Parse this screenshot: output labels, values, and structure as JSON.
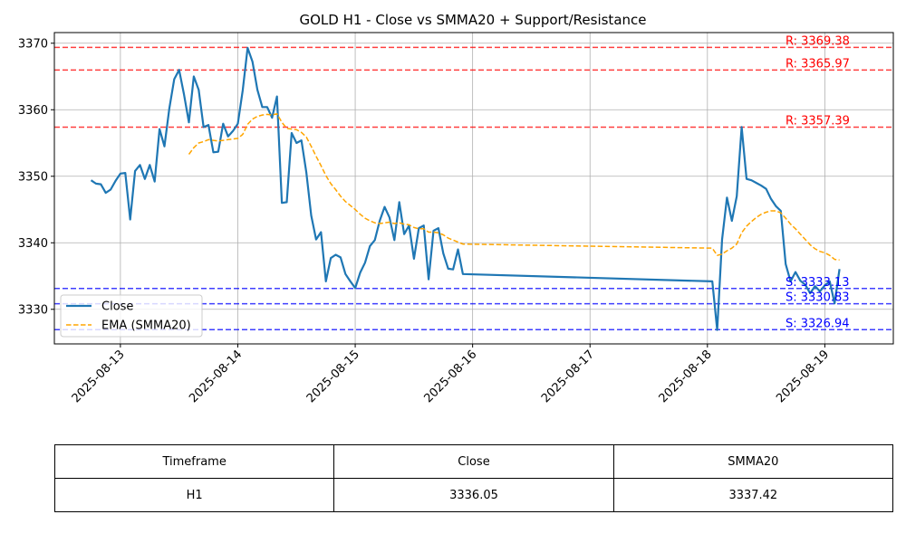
{
  "chart_data": {
    "type": "line",
    "title": "GOLD H1 - Close vs SMMA20 + Support/Resistance",
    "xlabel": "",
    "ylabel": "",
    "ylim": [
      3324.8,
      3371.6
    ],
    "xlim": [
      "2025-08-12 10:30",
      "2025-08-19 14:00"
    ],
    "grid": true,
    "legend_placement": "lower-left",
    "x_ticks": [
      "2025-08-13",
      "2025-08-14",
      "2025-08-15",
      "2025-08-16",
      "2025-08-17",
      "2025-08-18",
      "2025-08-19"
    ],
    "y_ticks": [
      3330,
      3340,
      3350,
      3360,
      3370
    ],
    "series": [
      {
        "name": "Close",
        "color": "#1f77b4",
        "style": "solid",
        "points": [
          [
            "2025-08-12 18:00",
            3349.4
          ],
          [
            "2025-08-12 19:00",
            3348.9
          ],
          [
            "2025-08-12 20:00",
            3348.8
          ],
          [
            "2025-08-12 21:00",
            3347.5
          ],
          [
            "2025-08-12 22:00",
            3348.0
          ],
          [
            "2025-08-12 23:00",
            3349.3
          ],
          [
            "2025-08-13 00:00",
            3350.4
          ],
          [
            "2025-08-13 01:00",
            3350.5
          ],
          [
            "2025-08-13 02:00",
            3343.5
          ],
          [
            "2025-08-13 03:00",
            3350.8
          ],
          [
            "2025-08-13 04:00",
            3351.7
          ],
          [
            "2025-08-13 05:00",
            3349.6
          ],
          [
            "2025-08-13 06:00",
            3351.7
          ],
          [
            "2025-08-13 07:00",
            3349.2
          ],
          [
            "2025-08-13 08:00",
            3357.1
          ],
          [
            "2025-08-13 09:00",
            3354.5
          ],
          [
            "2025-08-13 10:00",
            3360.2
          ],
          [
            "2025-08-13 11:00",
            3364.6
          ],
          [
            "2025-08-13 12:00",
            3366.0
          ],
          [
            "2025-08-13 13:00",
            3362.3
          ],
          [
            "2025-08-13 14:00",
            3358.1
          ],
          [
            "2025-08-13 15:00",
            3365.0
          ],
          [
            "2025-08-13 16:00",
            3363.0
          ],
          [
            "2025-08-13 17:00",
            3357.4
          ],
          [
            "2025-08-13 18:00",
            3357.7
          ],
          [
            "2025-08-13 19:00",
            3353.6
          ],
          [
            "2025-08-13 20:00",
            3353.7
          ],
          [
            "2025-08-13 21:00",
            3357.9
          ],
          [
            "2025-08-13 22:00",
            3356.0
          ],
          [
            "2025-08-13 23:00",
            3356.8
          ],
          [
            "2025-08-14 00:00",
            3357.9
          ],
          [
            "2025-08-14 01:00",
            3362.9
          ],
          [
            "2025-08-14 02:00",
            3369.3
          ],
          [
            "2025-08-14 03:00",
            3367.2
          ],
          [
            "2025-08-14 04:00",
            3363.0
          ],
          [
            "2025-08-14 05:00",
            3360.4
          ],
          [
            "2025-08-14 06:00",
            3360.4
          ],
          [
            "2025-08-14 07:00",
            3358.8
          ],
          [
            "2025-08-14 08:00",
            3362.0
          ],
          [
            "2025-08-14 09:00",
            3346.0
          ],
          [
            "2025-08-14 10:00",
            3346.1
          ],
          [
            "2025-08-14 11:00",
            3356.5
          ],
          [
            "2025-08-14 12:00",
            3355.0
          ],
          [
            "2025-08-14 13:00",
            3355.4
          ],
          [
            "2025-08-14 14:00",
            3350.6
          ],
          [
            "2025-08-14 15:00",
            3344.1
          ],
          [
            "2025-08-14 16:00",
            3340.5
          ],
          [
            "2025-08-14 17:00",
            3341.6
          ],
          [
            "2025-08-14 18:00",
            3334.2
          ],
          [
            "2025-08-14 19:00",
            3337.7
          ],
          [
            "2025-08-14 20:00",
            3338.2
          ],
          [
            "2025-08-14 21:00",
            3337.8
          ],
          [
            "2025-08-14 22:00",
            3335.3
          ],
          [
            "2025-08-14 23:00",
            3334.2
          ],
          [
            "2025-08-15 00:00",
            3333.2
          ],
          [
            "2025-08-15 01:00",
            3335.5
          ],
          [
            "2025-08-15 02:00",
            3337.0
          ],
          [
            "2025-08-15 03:00",
            3339.5
          ],
          [
            "2025-08-15 04:00",
            3340.4
          ],
          [
            "2025-08-15 05:00",
            3343.3
          ],
          [
            "2025-08-15 06:00",
            3345.4
          ],
          [
            "2025-08-15 07:00",
            3343.8
          ],
          [
            "2025-08-15 08:00",
            3340.4
          ],
          [
            "2025-08-15 09:00",
            3346.1
          ],
          [
            "2025-08-15 10:00",
            3341.3
          ],
          [
            "2025-08-15 11:00",
            3342.6
          ],
          [
            "2025-08-15 12:00",
            3337.6
          ],
          [
            "2025-08-15 13:00",
            3342.2
          ],
          [
            "2025-08-15 14:00",
            3342.6
          ],
          [
            "2025-08-15 15:00",
            3334.5
          ],
          [
            "2025-08-15 16:00",
            3341.8
          ],
          [
            "2025-08-15 17:00",
            3342.2
          ],
          [
            "2025-08-15 18:00",
            3338.4
          ],
          [
            "2025-08-15 19:00",
            3336.1
          ],
          [
            "2025-08-15 20:00",
            3336.0
          ],
          [
            "2025-08-15 21:00",
            3339.0
          ],
          [
            "2025-08-15 22:00",
            3335.3
          ],
          [
            "2025-08-18 01:00",
            3334.2
          ],
          [
            "2025-08-18 02:00",
            3326.9
          ],
          [
            "2025-08-18 03:00",
            3340.5
          ],
          [
            "2025-08-18 04:00",
            3346.8
          ],
          [
            "2025-08-18 05:00",
            3343.3
          ],
          [
            "2025-08-18 06:00",
            3347.0
          ],
          [
            "2025-08-18 07:00",
            3357.4
          ],
          [
            "2025-08-18 08:00",
            3349.6
          ],
          [
            "2025-08-18 09:00",
            3349.4
          ],
          [
            "2025-08-18 10:00",
            3349.0
          ],
          [
            "2025-08-18 11:00",
            3348.6
          ],
          [
            "2025-08-18 12:00",
            3348.1
          ],
          [
            "2025-08-18 13:00",
            3346.6
          ],
          [
            "2025-08-18 14:00",
            3345.5
          ],
          [
            "2025-08-18 15:00",
            3344.8
          ],
          [
            "2025-08-18 16:00",
            3336.8
          ],
          [
            "2025-08-18 17:00",
            3334.2
          ],
          [
            "2025-08-18 18:00",
            3335.6
          ],
          [
            "2025-08-18 19:00",
            3334.3
          ],
          [
            "2025-08-18 20:00",
            3333.7
          ],
          [
            "2025-08-18 21:00",
            3332.4
          ],
          [
            "2025-08-18 22:00",
            3333.5
          ],
          [
            "2025-08-18 23:00",
            3332.7
          ],
          [
            "2025-08-19 00:00",
            3333.6
          ],
          [
            "2025-08-19 01:00",
            3334.2
          ],
          [
            "2025-08-19 02:00",
            3330.9
          ],
          [
            "2025-08-19 03:00",
            3336.05
          ]
        ]
      },
      {
        "name": "EMA (SMMA20)",
        "color": "#ffa500",
        "style": "dashed",
        "points": [
          [
            "2025-08-13 14:00",
            3353.3
          ],
          [
            "2025-08-13 15:00",
            3354.3
          ],
          [
            "2025-08-13 16:00",
            3355.0
          ],
          [
            "2025-08-13 17:00",
            3355.2
          ],
          [
            "2025-08-13 18:00",
            3355.5
          ],
          [
            "2025-08-13 19:00",
            3355.4
          ],
          [
            "2025-08-13 20:00",
            3355.3
          ],
          [
            "2025-08-13 21:00",
            3355.4
          ],
          [
            "2025-08-13 22:00",
            3355.5
          ],
          [
            "2025-08-13 23:00",
            3355.6
          ],
          [
            "2025-08-14 00:00",
            3355.7
          ],
          [
            "2025-08-14 01:00",
            3356.3
          ],
          [
            "2025-08-14 02:00",
            3357.8
          ],
          [
            "2025-08-14 03:00",
            3358.6
          ],
          [
            "2025-08-14 04:00",
            3359.0
          ],
          [
            "2025-08-14 05:00",
            3359.2
          ],
          [
            "2025-08-14 06:00",
            3359.3
          ],
          [
            "2025-08-14 07:00",
            3359.2
          ],
          [
            "2025-08-14 08:00",
            3359.4
          ],
          [
            "2025-08-14 09:00",
            3358.1
          ],
          [
            "2025-08-14 10:00",
            3357.2
          ],
          [
            "2025-08-14 11:00",
            3357.1
          ],
          [
            "2025-08-14 12:00",
            3357.0
          ],
          [
            "2025-08-14 13:00",
            3356.6
          ],
          [
            "2025-08-14 14:00",
            3355.9
          ],
          [
            "2025-08-14 15:00",
            3354.5
          ],
          [
            "2025-08-14 16:00",
            3353.0
          ],
          [
            "2025-08-14 17:00",
            3351.6
          ],
          [
            "2025-08-14 18:00",
            3350.1
          ],
          [
            "2025-08-14 19:00",
            3348.9
          ],
          [
            "2025-08-14 20:00",
            3348.0
          ],
          [
            "2025-08-14 21:00",
            3347.0
          ],
          [
            "2025-08-14 22:00",
            3346.2
          ],
          [
            "2025-08-14 23:00",
            3345.6
          ],
          [
            "2025-08-15 00:00",
            3345.0
          ],
          [
            "2025-08-15 01:00",
            3344.3
          ],
          [
            "2025-08-15 02:00",
            3343.7
          ],
          [
            "2025-08-15 03:00",
            3343.3
          ],
          [
            "2025-08-15 04:00",
            3343.0
          ],
          [
            "2025-08-15 05:00",
            3342.9
          ],
          [
            "2025-08-15 06:00",
            3343.0
          ],
          [
            "2025-08-15 07:00",
            3343.1
          ],
          [
            "2025-08-15 08:00",
            3342.9
          ],
          [
            "2025-08-15 09:00",
            3343.0
          ],
          [
            "2025-08-15 10:00",
            3342.8
          ],
          [
            "2025-08-15 11:00",
            3342.7
          ],
          [
            "2025-08-15 12:00",
            3342.3
          ],
          [
            "2025-08-15 13:00",
            3342.1
          ],
          [
            "2025-08-15 14:00",
            3342.1
          ],
          [
            "2025-08-15 15:00",
            3341.6
          ],
          [
            "2025-08-15 16:00",
            3341.6
          ],
          [
            "2025-08-15 17:00",
            3341.5
          ],
          [
            "2025-08-15 18:00",
            3341.2
          ],
          [
            "2025-08-15 19:00",
            3340.7
          ],
          [
            "2025-08-15 20:00",
            3340.4
          ],
          [
            "2025-08-15 21:00",
            3340.1
          ],
          [
            "2025-08-15 22:00",
            3339.8
          ],
          [
            "2025-08-18 01:00",
            3339.2
          ],
          [
            "2025-08-18 02:00",
            3338.1
          ],
          [
            "2025-08-18 03:00",
            3338.3
          ],
          [
            "2025-08-18 04:00",
            3338.8
          ],
          [
            "2025-08-18 05:00",
            3339.2
          ],
          [
            "2025-08-18 06:00",
            3339.8
          ],
          [
            "2025-08-18 07:00",
            3341.5
          ],
          [
            "2025-08-18 08:00",
            3342.5
          ],
          [
            "2025-08-18 09:00",
            3343.2
          ],
          [
            "2025-08-18 10:00",
            3343.8
          ],
          [
            "2025-08-18 11:00",
            3344.3
          ],
          [
            "2025-08-18 12:00",
            3344.6
          ],
          [
            "2025-08-18 13:00",
            3344.8
          ],
          [
            "2025-08-18 14:00",
            3344.8
          ],
          [
            "2025-08-18 15:00",
            3344.5
          ],
          [
            "2025-08-18 16:00",
            3343.7
          ],
          [
            "2025-08-18 17:00",
            3342.8
          ],
          [
            "2025-08-18 18:00",
            3342.1
          ],
          [
            "2025-08-18 19:00",
            3341.3
          ],
          [
            "2025-08-18 20:00",
            3340.5
          ],
          [
            "2025-08-18 21:00",
            3339.7
          ],
          [
            "2025-08-18 22:00",
            3339.1
          ],
          [
            "2025-08-18 23:00",
            3338.7
          ],
          [
            "2025-08-19 00:00",
            3338.5
          ],
          [
            "2025-08-19 01:00",
            3338.1
          ],
          [
            "2025-08-19 02:00",
            3337.5
          ],
          [
            "2025-08-19 03:00",
            3337.42
          ]
        ]
      }
    ],
    "resistance_levels": [
      {
        "label": "R: 3369.38",
        "value": 3369.38
      },
      {
        "label": "R: 3365.97",
        "value": 3365.97
      },
      {
        "label": "R: 3357.39",
        "value": 3357.39
      }
    ],
    "support_levels": [
      {
        "label": "S: 3333.13",
        "value": 3333.13
      },
      {
        "label": "S: 3330.83",
        "value": 3330.83
      },
      {
        "label": "S: 3326.94",
        "value": 3326.94
      }
    ],
    "colors": {
      "resistance": "#ff0000",
      "support": "#0000ff",
      "grid": "#b0b0b0"
    }
  },
  "table": {
    "headers": [
      "Timeframe",
      "Close",
      "SMMA20"
    ],
    "rows": [
      [
        "H1",
        "3336.05",
        "3337.42"
      ]
    ]
  }
}
